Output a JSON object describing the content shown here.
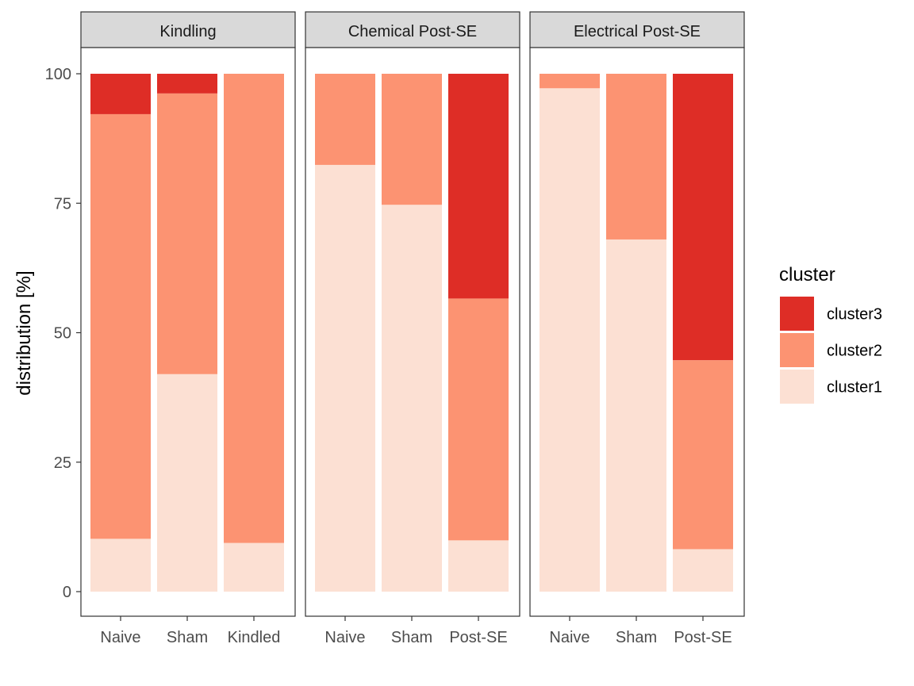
{
  "chart_data": {
    "type": "bar",
    "stacked": true,
    "ylabel": "distribution [%]",
    "ylim": [
      0,
      100
    ],
    "yticks": [
      0,
      25,
      50,
      75,
      100
    ],
    "grid": false,
    "legend": {
      "title": "cluster",
      "position": "right",
      "entries": [
        "cluster3",
        "cluster2",
        "cluster1"
      ]
    },
    "colors": {
      "cluster1": "#FCE0D3",
      "cluster2": "#FC9372",
      "cluster3": "#DE2D26"
    },
    "stack_order": [
      "cluster1",
      "cluster2",
      "cluster3"
    ],
    "panels": [
      {
        "title": "Kindling",
        "categories": [
          "Naive",
          "Sham",
          "Kindled"
        ],
        "series": [
          {
            "name": "cluster1",
            "values": [
              10.2,
              42.0,
              9.4
            ]
          },
          {
            "name": "cluster2",
            "values": [
              82.0,
              54.2,
              90.6
            ]
          },
          {
            "name": "cluster3",
            "values": [
              7.8,
              3.8,
              0
            ]
          }
        ]
      },
      {
        "title": "Chemical Post-SE",
        "categories": [
          "Naive",
          "Sham",
          "Post-SE"
        ],
        "series": [
          {
            "name": "cluster1",
            "values": [
              82.4,
              74.7,
              9.9
            ]
          },
          {
            "name": "cluster2",
            "values": [
              17.6,
              25.3,
              46.7
            ]
          },
          {
            "name": "cluster3",
            "values": [
              0,
              0,
              43.4
            ]
          }
        ]
      },
      {
        "title": "Electrical Post-SE",
        "categories": [
          "Naive",
          "Sham",
          "Post-SE"
        ],
        "series": [
          {
            "name": "cluster1",
            "values": [
              97.2,
              68.0,
              8.2
            ]
          },
          {
            "name": "cluster2",
            "values": [
              2.8,
              32.0,
              36.5
            ]
          },
          {
            "name": "cluster3",
            "values": [
              0,
              0,
              55.3
            ]
          }
        ]
      }
    ]
  }
}
